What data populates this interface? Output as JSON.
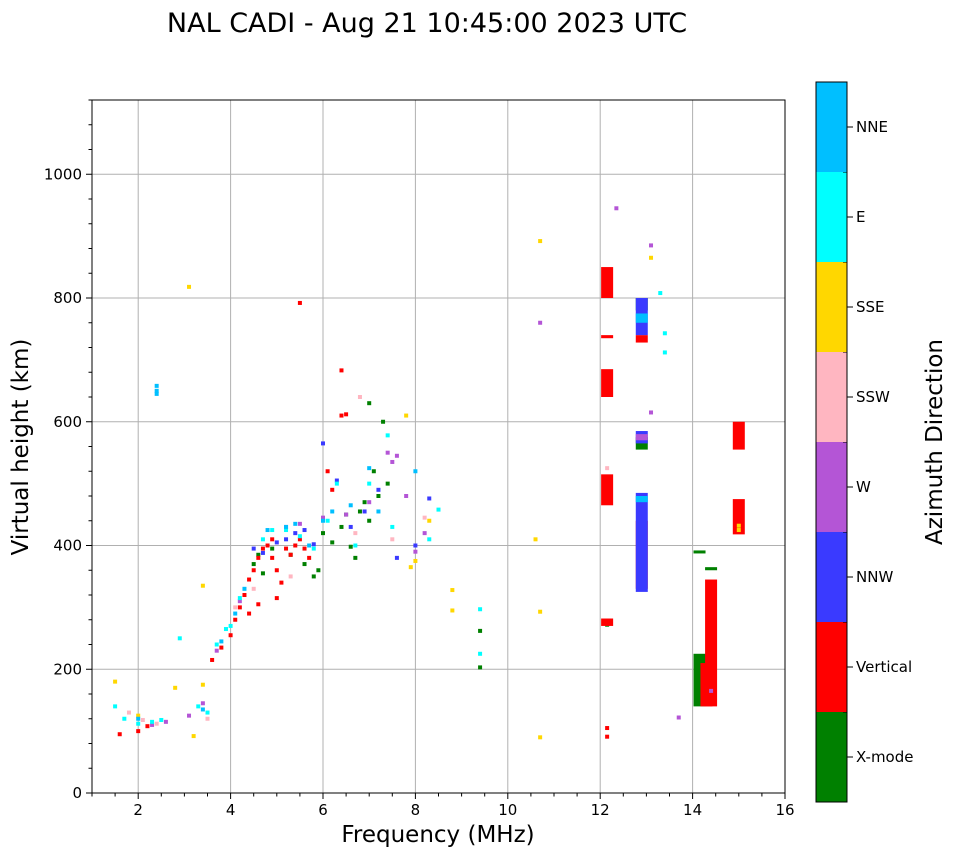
{
  "chart_data": {
    "type": "scatter",
    "title": "NAL CADI - Aug 21 10:45:00 2023 UTC",
    "xlabel": "Frequency (MHz)",
    "ylabel": "Virtual height (km)",
    "xlim": [
      1,
      16
    ],
    "ylim": [
      0,
      1120
    ],
    "xticks": [
      2,
      4,
      6,
      8,
      10,
      12,
      14,
      16
    ],
    "yticks": [
      0,
      200,
      400,
      600,
      800,
      1000
    ],
    "grid": true,
    "colorbar": {
      "label": "Azimuth Direction",
      "categories": [
        "X-mode",
        "Vertical",
        "NNW",
        "W",
        "SSW",
        "SSE",
        "E",
        "NNE"
      ],
      "colors": [
        "#008000",
        "#ff0000",
        "#3a3aff",
        "#b455d6",
        "#ffb6c1",
        "#ffd700",
        "#00ffff",
        "#00bfff"
      ]
    },
    "series": [
      {
        "name": "X-mode",
        "points": [
          [
            4.5,
            370
          ],
          [
            4.6,
            385
          ],
          [
            4.9,
            395
          ],
          [
            5.3,
            385
          ],
          [
            5.6,
            370
          ],
          [
            5.8,
            350
          ],
          [
            6.0,
            420
          ],
          [
            6.2,
            405
          ],
          [
            6.4,
            430
          ],
          [
            6.5,
            450
          ],
          [
            6.6,
            398
          ],
          [
            6.7,
            380
          ],
          [
            6.9,
            470
          ],
          [
            7.0,
            440
          ],
          [
            7.1,
            520
          ],
          [
            7.2,
            480
          ],
          [
            7.3,
            600
          ],
          [
            7.0,
            630
          ],
          [
            6.8,
            455
          ],
          [
            7.4,
            500
          ],
          [
            4.7,
            355
          ],
          [
            5.9,
            360
          ],
          [
            9.4,
            262
          ],
          [
            9.4,
            203
          ],
          [
            12.15,
            272
          ]
        ],
        "blocks": [
          [
            12.9,
            780,
            800
          ],
          [
            12.9,
            555,
            575
          ],
          [
            14.15,
            140,
            225
          ],
          [
            14.4,
            360,
            365
          ],
          [
            14.15,
            389,
            392
          ]
        ]
      },
      {
        "name": "Vertical",
        "points": [
          [
            1.6,
            95
          ],
          [
            2.0,
            100
          ],
          [
            2.2,
            108
          ],
          [
            3.6,
            215
          ],
          [
            3.8,
            235
          ],
          [
            4.0,
            255
          ],
          [
            4.1,
            280
          ],
          [
            4.2,
            300
          ],
          [
            4.3,
            320
          ],
          [
            4.4,
            345
          ],
          [
            4.5,
            360
          ],
          [
            4.6,
            380
          ],
          [
            4.7,
            395
          ],
          [
            4.8,
            400
          ],
          [
            4.9,
            380
          ],
          [
            5.0,
            360
          ],
          [
            5.1,
            340
          ],
          [
            5.2,
            395
          ],
          [
            5.3,
            385
          ],
          [
            5.4,
            400
          ],
          [
            5.5,
            410
          ],
          [
            5.6,
            395
          ],
          [
            5.0,
            315
          ],
          [
            4.6,
            305
          ],
          [
            4.4,
            290
          ],
          [
            6.4,
            610
          ],
          [
            6.5,
            612
          ],
          [
            6.4,
            683
          ],
          [
            5.5,
            792
          ],
          [
            6.1,
            520
          ],
          [
            6.2,
            490
          ],
          [
            4.9,
            410
          ],
          [
            5.7,
            380
          ],
          [
            12.15,
            91
          ],
          [
            12.15,
            105
          ]
        ],
        "blocks": [
          [
            12.15,
            800,
            850
          ],
          [
            12.15,
            735,
            740
          ],
          [
            12.15,
            640,
            685
          ],
          [
            12.15,
            465,
            515
          ],
          [
            12.15,
            270,
            282
          ],
          [
            12.9,
            728,
            740
          ],
          [
            12.9,
            330,
            440
          ],
          [
            14.3,
            140,
            210
          ],
          [
            14.4,
            140,
            345
          ],
          [
            15.0,
            555,
            600
          ],
          [
            15.0,
            418,
            475
          ]
        ]
      },
      {
        "name": "NNW",
        "points": [
          [
            4.5,
            395
          ],
          [
            4.7,
            388
          ],
          [
            5.0,
            405
          ],
          [
            5.2,
            410
          ],
          [
            5.4,
            420
          ],
          [
            5.6,
            425
          ],
          [
            5.8,
            402
          ],
          [
            6.6,
            430
          ],
          [
            6.9,
            455
          ],
          [
            7.2,
            490
          ],
          [
            7.6,
            380
          ],
          [
            8.0,
            400
          ],
          [
            8.3,
            476
          ],
          [
            6.0,
            565
          ],
          [
            6.3,
            505
          ]
        ],
        "blocks": [
          [
            12.9,
            740,
            800
          ],
          [
            12.9,
            325,
            485
          ],
          [
            12.9,
            565,
            585
          ]
        ]
      },
      {
        "name": "W",
        "points": [
          [
            2.3,
            110
          ],
          [
            2.6,
            115
          ],
          [
            3.1,
            125
          ],
          [
            3.4,
            145
          ],
          [
            3.7,
            230
          ],
          [
            4.2,
            310
          ],
          [
            5.2,
            430
          ],
          [
            5.5,
            435
          ],
          [
            6.0,
            445
          ],
          [
            6.5,
            450
          ],
          [
            7.0,
            470
          ],
          [
            7.4,
            550
          ],
          [
            7.5,
            535
          ],
          [
            7.6,
            545
          ],
          [
            7.8,
            480
          ],
          [
            8.0,
            390
          ],
          [
            8.2,
            420
          ],
          [
            10.7,
            760
          ],
          [
            12.35,
            945
          ],
          [
            13.1,
            885
          ],
          [
            13.1,
            615
          ],
          [
            13.7,
            122
          ],
          [
            14.4,
            165
          ]
        ],
        "blocks": [
          [
            12.9,
            570,
            580
          ]
        ]
      },
      {
        "name": "SSW",
        "points": [
          [
            1.8,
            130
          ],
          [
            2.1,
            118
          ],
          [
            2.4,
            112
          ],
          [
            3.5,
            120
          ],
          [
            4.1,
            300
          ],
          [
            4.5,
            330
          ],
          [
            5.3,
            350
          ],
          [
            6.8,
            640
          ],
          [
            7.5,
            410
          ],
          [
            8.2,
            445
          ],
          [
            6.7,
            420
          ],
          [
            12.15,
            525
          ]
        ]
      },
      {
        "name": "SSE",
        "points": [
          [
            1.5,
            180
          ],
          [
            2.0,
            125
          ],
          [
            2.8,
            170
          ],
          [
            3.1,
            818
          ],
          [
            3.2,
            92
          ],
          [
            3.4,
            175
          ],
          [
            3.4,
            335
          ],
          [
            7.8,
            610
          ],
          [
            7.9,
            365
          ],
          [
            8.0,
            375
          ],
          [
            8.3,
            440
          ],
          [
            8.8,
            328
          ],
          [
            8.8,
            295
          ],
          [
            10.6,
            410
          ],
          [
            10.7,
            892
          ],
          [
            10.7,
            293
          ],
          [
            10.7,
            90
          ],
          [
            13.1,
            865
          ],
          [
            15.0,
            425
          ],
          [
            15.0,
            432
          ]
        ]
      },
      {
        "name": "E",
        "points": [
          [
            1.5,
            140
          ],
          [
            1.7,
            120
          ],
          [
            2.0,
            112
          ],
          [
            2.3,
            115
          ],
          [
            2.5,
            118
          ],
          [
            2.9,
            250
          ],
          [
            3.3,
            140
          ],
          [
            3.5,
            130
          ],
          [
            3.7,
            240
          ],
          [
            3.9,
            265
          ],
          [
            4.0,
            270
          ],
          [
            4.2,
            315
          ],
          [
            4.7,
            410
          ],
          [
            4.9,
            425
          ],
          [
            5.2,
            425
          ],
          [
            5.5,
            415
          ],
          [
            5.8,
            395
          ],
          [
            6.1,
            440
          ],
          [
            6.3,
            500
          ],
          [
            6.7,
            400
          ],
          [
            7.0,
            500
          ],
          [
            7.5,
            430
          ],
          [
            8.5,
            458
          ],
          [
            9.4,
            297
          ],
          [
            9.4,
            225
          ],
          [
            13.3,
            808
          ],
          [
            13.4,
            743
          ],
          [
            13.4,
            712
          ],
          [
            7.4,
            578
          ],
          [
            8.3,
            410
          ]
        ]
      },
      {
        "name": "NNE",
        "points": [
          [
            2.0,
            120
          ],
          [
            2.4,
            650
          ],
          [
            2.4,
            645
          ],
          [
            2.4,
            658
          ],
          [
            3.4,
            135
          ],
          [
            3.8,
            245
          ],
          [
            4.1,
            290
          ],
          [
            4.3,
            330
          ],
          [
            4.8,
            425
          ],
          [
            5.2,
            430
          ],
          [
            5.4,
            435
          ],
          [
            5.7,
            400
          ],
          [
            6.0,
            440
          ],
          [
            6.2,
            455
          ],
          [
            6.6,
            465
          ],
          [
            7.0,
            525
          ],
          [
            7.2,
            455
          ],
          [
            8.0,
            520
          ]
        ],
        "blocks": [
          [
            12.9,
            760,
            775
          ],
          [
            12.9,
            470,
            480
          ]
        ]
      }
    ]
  }
}
